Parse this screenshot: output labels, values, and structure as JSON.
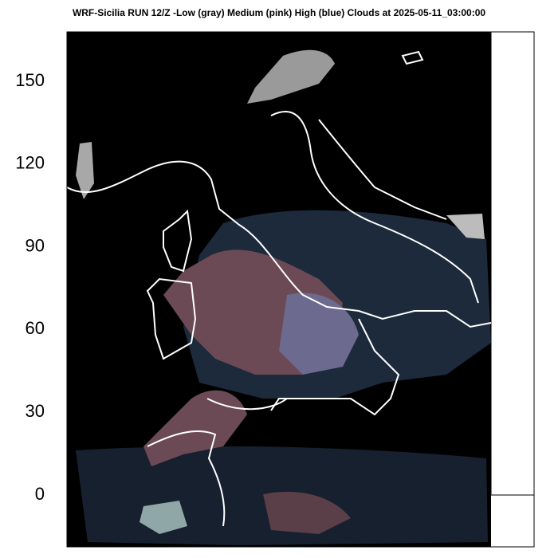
{
  "chart_data": {
    "type": "map",
    "title": "WRF-Sicilia RUN 12/Z -Low (gray) Medium (pink) High (blue) Clouds at 2025-05-11_03:00:00",
    "ylim": [
      -18.8,
      168.5
    ],
    "yticks": [
      0,
      30,
      60,
      90,
      120,
      150
    ]
  }
}
